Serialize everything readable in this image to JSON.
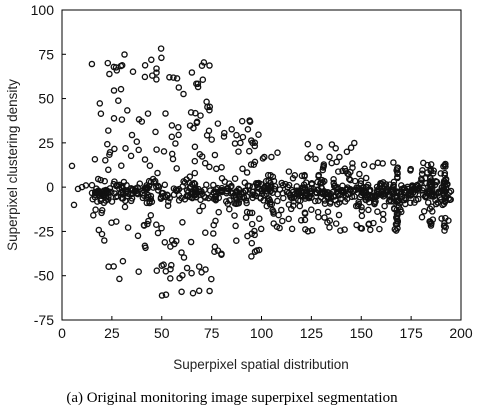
{
  "caption": "(a) Original monitoring image superpixel segmentation",
  "chart_data": {
    "type": "scatter",
    "xlabel": "Superpixel spatial distribution",
    "ylabel": "Superpixel clustering density",
    "xlim": [
      0,
      200
    ],
    "ylim": [
      -75,
      100
    ],
    "xticks": [
      "0",
      "25",
      "50",
      "75",
      "100",
      "125",
      "150",
      "175",
      "200"
    ],
    "yticks": [
      "100",
      "75",
      "50",
      "25",
      "0",
      "-25",
      "-50",
      "-75"
    ],
    "grid": false,
    "marker": "open-circle",
    "clusters": [
      {
        "x": [
          15,
          27
        ],
        "y": [
          -52,
          80
        ],
        "n": 30
      },
      {
        "x": [
          27,
          50
        ],
        "y": [
          -52,
          79
        ],
        "n": 60
      },
      {
        "x": [
          50,
          75
        ],
        "y": [
          -62,
          72
        ],
        "n": 85
      },
      {
        "x": [
          75,
          100
        ],
        "y": [
          -40,
          40
        ],
        "n": 70
      },
      {
        "x": [
          100,
          150
        ],
        "y": [
          -25,
          25
        ],
        "n": 110
      },
      {
        "x": [
          150,
          195
        ],
        "y": [
          -25,
          15
        ],
        "n": 90
      }
    ],
    "dense_band_y": [
      -8,
      2
    ],
    "columns_x": [
      168,
      185,
      192
    ]
  }
}
